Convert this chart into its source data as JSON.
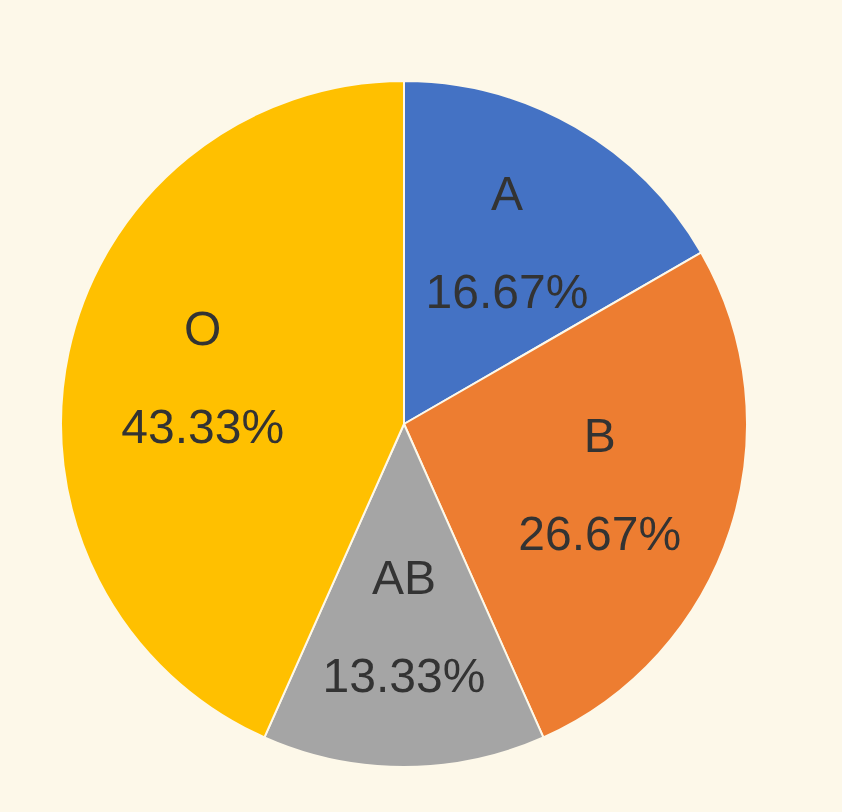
{
  "chart_data": {
    "type": "pie",
    "categories": [
      "A",
      "B",
      "AB",
      "O"
    ],
    "values": [
      16.67,
      26.67,
      13.33,
      43.33
    ],
    "colors": [
      "#4472c4",
      "#ed7d31",
      "#a5a5a5",
      "#ffc000"
    ],
    "value_labels": [
      "16.67%",
      "26.67%",
      "13.33%",
      "43.33%"
    ]
  }
}
